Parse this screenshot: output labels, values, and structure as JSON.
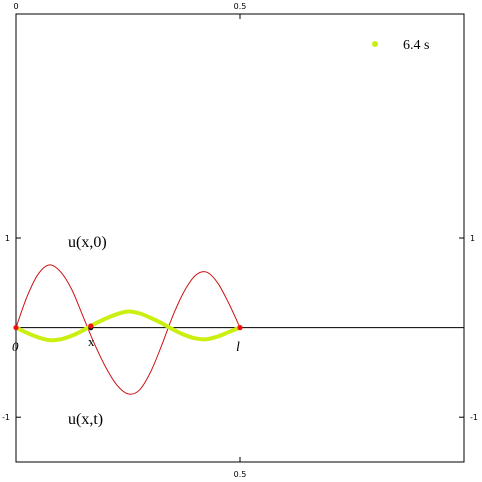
{
  "chart_data": {
    "type": "line",
    "x_range": [
      0,
      1
    ],
    "y_range": [
      -1.5,
      3.5
    ],
    "x_ticks": [
      {
        "value": 0,
        "label": "0"
      },
      {
        "value": 0.5,
        "label": "0.5"
      }
    ],
    "y_ticks": [
      {
        "value": 1,
        "label": "1"
      },
      {
        "value": -1,
        "label": "-1"
      }
    ],
    "legend": {
      "label": "6.4 s",
      "placement": "top-right",
      "color": "#ccee11"
    },
    "annotations": {
      "initial_label": "u(x,0)",
      "current_label": "u(x,t)",
      "origin_label": "0",
      "end_label": "l",
      "point_label": "x"
    },
    "string": {
      "length": 0.5,
      "marker_x": 0.167
    },
    "series": [
      {
        "role": "initial",
        "color": "#cc1111",
        "x": [
          0,
          0.025,
          0.05,
          0.075,
          0.1,
          0.125,
          0.15,
          0.175,
          0.2,
          0.225,
          0.25,
          0.275,
          0.3,
          0.325,
          0.35,
          0.375,
          0.4,
          0.425,
          0.45,
          0.475,
          0.5
        ],
        "y": [
          0,
          0.35,
          0.6,
          0.7,
          0.62,
          0.42,
          0.12,
          -0.18,
          -0.44,
          -0.64,
          -0.74,
          -0.7,
          -0.5,
          -0.2,
          0.13,
          0.4,
          0.58,
          0.62,
          0.5,
          0.27,
          0
        ]
      },
      {
        "role": "current",
        "color": "#ccee11",
        "x": [
          0,
          0.025,
          0.05,
          0.075,
          0.1,
          0.125,
          0.15,
          0.175,
          0.2,
          0.225,
          0.25,
          0.275,
          0.3,
          0.325,
          0.35,
          0.375,
          0.4,
          0.425,
          0.45,
          0.475,
          0.5
        ],
        "y": [
          0,
          -0.06,
          -0.11,
          -0.14,
          -0.13,
          -0.09,
          -0.03,
          0.04,
          0.1,
          0.15,
          0.18,
          0.16,
          0.11,
          0.05,
          -0.02,
          -0.08,
          -0.12,
          -0.13,
          -0.1,
          -0.05,
          0
        ]
      }
    ]
  }
}
